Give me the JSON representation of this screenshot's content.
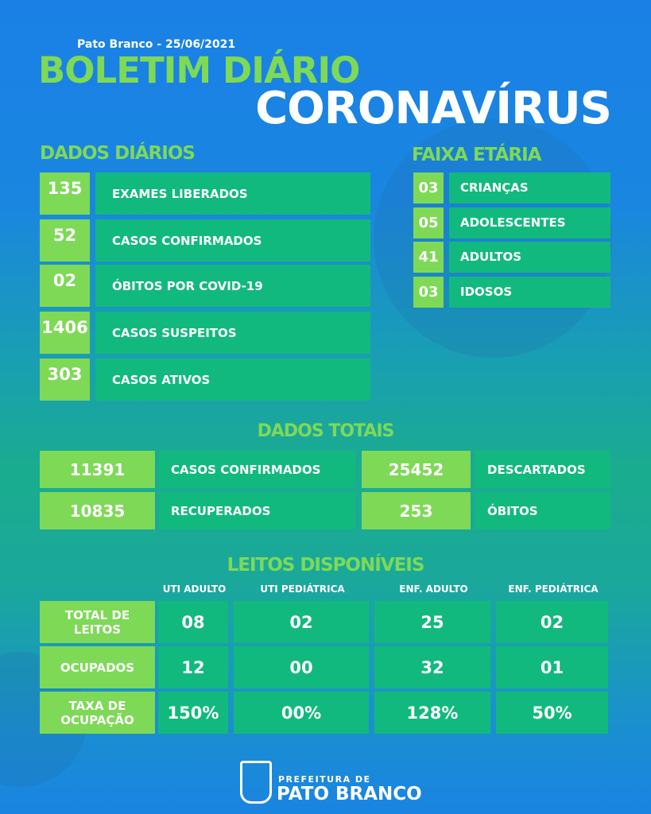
{
  "header": {
    "subtitle": "Pato Branco - 25/06/2021",
    "title1": "BOLETIM DIÁRIO",
    "title2": "CORONAVÍRUS"
  },
  "daily": {
    "title": "DADOS DIÁRIOS",
    "items": [
      {
        "value": "135",
        "label": "EXAMES LIBERADOS"
      },
      {
        "value": "52",
        "label": "CASOS CONFIRMADOS"
      },
      {
        "value": "02",
        "label": "ÓBITOS POR COVID-19"
      },
      {
        "value": "1406",
        "label": "CASOS SUSPEITOS"
      },
      {
        "value": "303",
        "label": "CASOS ATIVOS"
      }
    ]
  },
  "age": {
    "title": "FAIXA ETÁRIA",
    "items": [
      {
        "value": "03",
        "label": "CRIANÇAS"
      },
      {
        "value": "05",
        "label": "ADOLESCENTES"
      },
      {
        "value": "41",
        "label": "ADULTOS"
      },
      {
        "value": "03",
        "label": "IDOSOS"
      }
    ]
  },
  "totals": {
    "title": "DADOS TOTAIS",
    "items": [
      {
        "value": "11391",
        "label": "CASOS CONFIRMADOS"
      },
      {
        "value": "25452",
        "label": "DESCARTADOS"
      },
      {
        "value": "10835",
        "label": "RECUPERADOS"
      },
      {
        "value": "253",
        "label": "ÓBITOS"
      }
    ]
  },
  "beds": {
    "title": "LEITOS DISPONÍVEIS",
    "columns": [
      "UTI ADULTO",
      "UTI PEDIÁTRICA",
      "ENF. ADULTO",
      "ENF. PEDIÁTRICA"
    ],
    "rows": [
      {
        "label": "TOTAL DE LEITOS",
        "values": [
          "08",
          "02",
          "25",
          "02"
        ]
      },
      {
        "label": "OCUPADOS",
        "values": [
          "12",
          "00",
          "32",
          "01"
        ]
      },
      {
        "label": "TAXA DE OCUPAÇÃO",
        "values": [
          "150%",
          "00%",
          "128%",
          "50%"
        ]
      }
    ]
  },
  "footer": {
    "line1": "PREFEITURA DE",
    "line2": "PATO BRANCO"
  },
  "colors": {
    "accent_green": "#7ed957",
    "cell_green": "#12b97f",
    "background_blue": "#1a80e6"
  }
}
